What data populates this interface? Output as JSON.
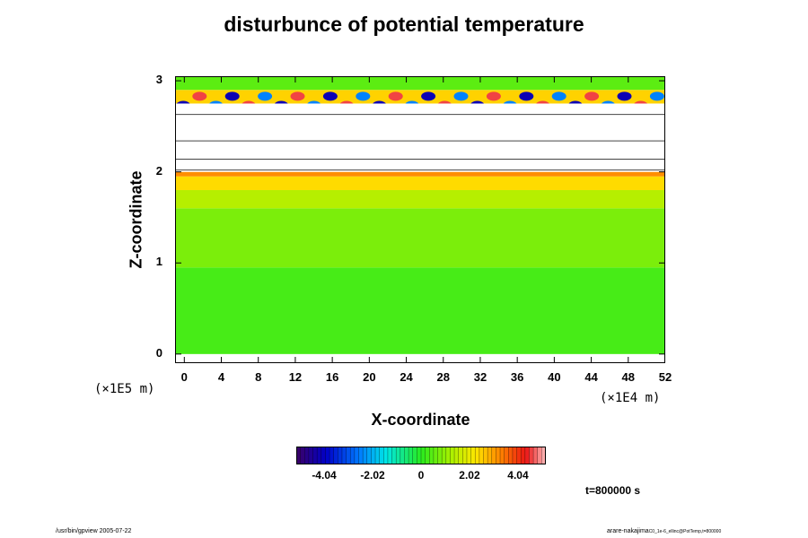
{
  "title": "disturbunce of potential temperature",
  "time_label": "t=800000 s",
  "footer_left": "/usr/bin/gpview 2005-07-22",
  "footer_right": "arare-nakajima",
  "footer_right_small": "C0_1e-6_ellinc@PotTemp,t=800000",
  "chart_data": {
    "type": "heatmap",
    "title": "disturbunce of potential temperature",
    "xlabel": "X-coordinate",
    "ylabel": "Z-coordinate",
    "x_unit": "(×1E4 m)",
    "y_unit": "(×1E5 m)",
    "xlim": [
      0,
      52
    ],
    "ylim": [
      0,
      3
    ],
    "x_ticks": [
      "0",
      "4",
      "8",
      "12",
      "16",
      "20",
      "24",
      "28",
      "32",
      "36",
      "40",
      "44",
      "48",
      "52"
    ],
    "y_ticks": [
      "0",
      "1",
      "2",
      "3"
    ],
    "colorbar": {
      "min": -5.2,
      "max": 5.2,
      "ticks": [
        "-4.04",
        "-2.02",
        "0",
        "2.02",
        "4.04"
      ],
      "tick_values": [
        -4.04,
        -2.02,
        0,
        2.02,
        4.04
      ]
    },
    "layers": [
      {
        "z": [
          0.0,
          0.95
        ],
        "value": 0.3
      },
      {
        "z": [
          0.95,
          1.6
        ],
        "value": 0.8
      },
      {
        "z": [
          1.6,
          1.8
        ],
        "value": 1.4
      },
      {
        "z": [
          1.8,
          1.95
        ],
        "value": 2.4
      },
      {
        "z": [
          1.95,
          2.0
        ],
        "value": 3.2
      },
      {
        "z": [
          2.75,
          2.9
        ],
        "value": 2.5
      },
      {
        "z": [
          2.9,
          3.05
        ],
        "value": 0.5
      }
    ],
    "blank_bands": [
      [
        2.0,
        2.12
      ],
      [
        2.16,
        2.32
      ],
      [
        2.36,
        2.62
      ],
      [
        2.64,
        2.75
      ]
    ],
    "thin_lines": [
      2.02,
      2.14,
      2.34,
      2.63
    ]
  }
}
